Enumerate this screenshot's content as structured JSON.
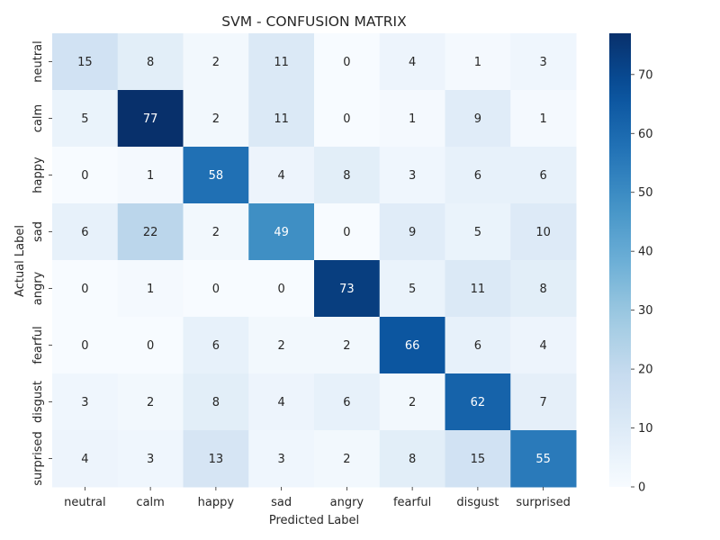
{
  "chart_data": {
    "type": "heatmap",
    "title": "SVM - CONFUSION MATRIX",
    "xlabel": "Predicted Label",
    "ylabel": "Actual Label",
    "x_categories": [
      "neutral",
      "calm",
      "happy",
      "sad",
      "angry",
      "fearful",
      "disgust",
      "surprised"
    ],
    "y_categories": [
      "neutral",
      "calm",
      "happy",
      "sad",
      "angry",
      "fearful",
      "disgust",
      "surprised"
    ],
    "values": [
      [
        15,
        8,
        2,
        11,
        0,
        4,
        1,
        3
      ],
      [
        5,
        77,
        2,
        11,
        0,
        1,
        9,
        1
      ],
      [
        0,
        1,
        58,
        4,
        8,
        3,
        6,
        6
      ],
      [
        6,
        22,
        2,
        49,
        0,
        9,
        5,
        10
      ],
      [
        0,
        1,
        0,
        0,
        73,
        5,
        11,
        8
      ],
      [
        0,
        0,
        6,
        2,
        2,
        66,
        6,
        4
      ],
      [
        3,
        2,
        8,
        4,
        6,
        2,
        62,
        7
      ],
      [
        4,
        3,
        13,
        3,
        2,
        8,
        15,
        55
      ]
    ],
    "colorbar": {
      "min": 0,
      "max": 77,
      "ticks": [
        0,
        10,
        20,
        30,
        40,
        50,
        60,
        70
      ],
      "colormap": "Blues",
      "low_color": "#f7fbff",
      "high_color": "#08306b"
    },
    "annotations": true,
    "grid": false
  }
}
